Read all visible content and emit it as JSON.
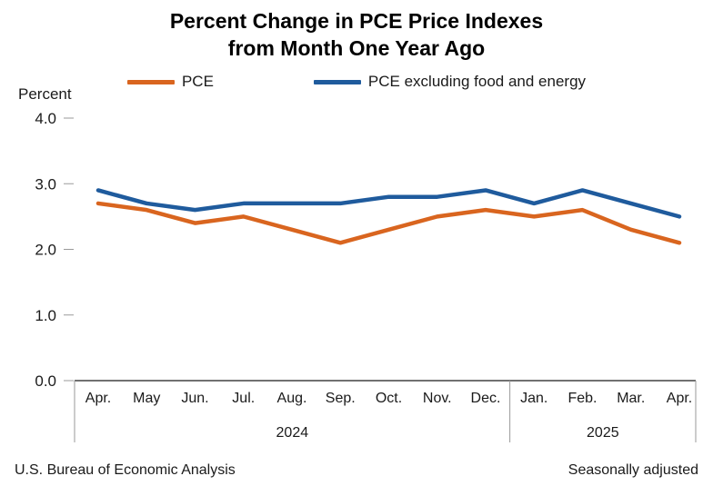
{
  "header": {
    "title_line1": "Percent Change in PCE Price Indexes",
    "title_line2": "from Month One Year Ago"
  },
  "legend": [
    {
      "label": "PCE",
      "color": "#D9651F"
    },
    {
      "label": "PCE excluding food and energy",
      "color": "#1F5B9D"
    }
  ],
  "axis": {
    "percent_label": "Percent",
    "y_ticks": [
      "4.0",
      "3.0",
      "2.0",
      "1.0",
      "0.0"
    ]
  },
  "footer": {
    "left": "U.S. Bureau of Economic Analysis",
    "right": "Seasonally adjusted"
  },
  "chart_data": {
    "type": "line",
    "title": "Percent Change in PCE Price Indexes from Month One Year Ago",
    "ylabel": "Percent",
    "ylim": [
      0,
      4
    ],
    "grid": false,
    "legend_position": "top",
    "x": [
      "Apr.",
      "May",
      "Jun.",
      "Jul.",
      "Aug.",
      "Sep.",
      "Oct.",
      "Nov.",
      "Dec.",
      "Jan.",
      "Feb.",
      "Mar.",
      "Apr."
    ],
    "year_groups": [
      {
        "label": "2024",
        "start": 0,
        "end": 8
      },
      {
        "label": "2025",
        "start": 9,
        "end": 12
      }
    ],
    "series": [
      {
        "name": "PCE",
        "color": "#D9651F",
        "values": [
          2.7,
          2.6,
          2.4,
          2.5,
          2.3,
          2.1,
          2.3,
          2.5,
          2.6,
          2.5,
          2.6,
          2.3,
          2.1
        ]
      },
      {
        "name": "PCE excluding food and energy",
        "color": "#1F5B9D",
        "values": [
          2.9,
          2.7,
          2.6,
          2.7,
          2.7,
          2.7,
          2.8,
          2.8,
          2.9,
          2.7,
          2.9,
          2.7,
          2.5
        ]
      }
    ]
  }
}
